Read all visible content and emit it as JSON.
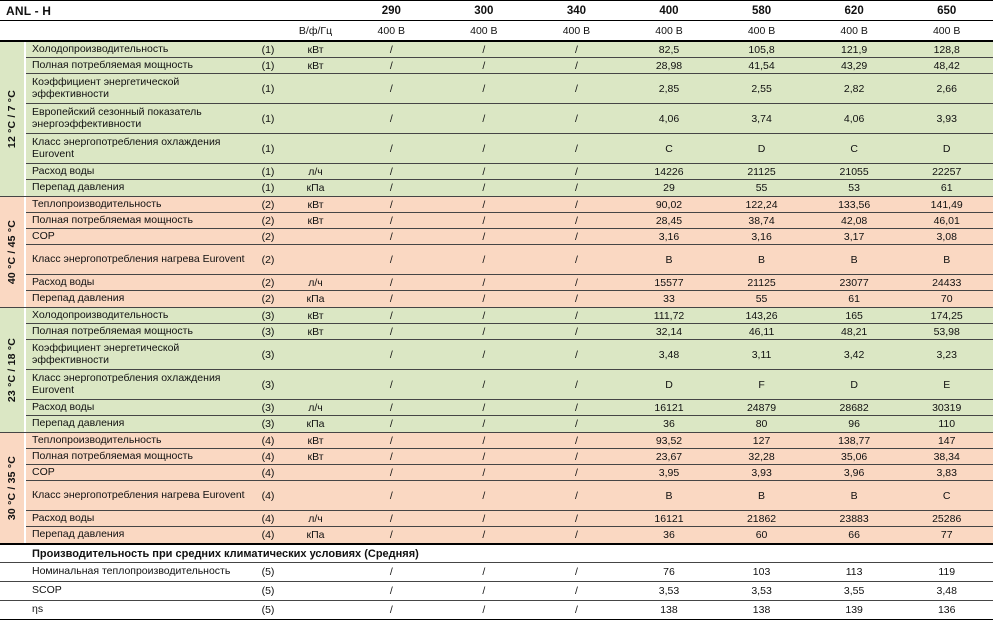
{
  "title": "ANL - H",
  "header": {
    "electrical_label": "В/ф/Гц",
    "models": [
      "290",
      "300",
      "340",
      "400",
      "580",
      "620",
      "650"
    ],
    "power_supply": [
      "400 В",
      "400 В",
      "400 В",
      "400 В",
      "400 В",
      "400 В",
      "400 В"
    ]
  },
  "colors": {
    "cooling_bg": "#dbe7c4",
    "heating_bg": "#fad8c2"
  },
  "sections": [
    {
      "temp_label": "12 °C / 7 °C",
      "type": "cooling",
      "rows": [
        {
          "name": "Холодопроизводительность",
          "note": "(1)",
          "unit": "кВт",
          "values": [
            "/",
            "/",
            "/",
            "82,5",
            "105,8",
            "121,9",
            "128,8"
          ]
        },
        {
          "name": "Полная потребляемая мощность",
          "note": "(1)",
          "unit": "кВт",
          "values": [
            "/",
            "/",
            "/",
            "28,98",
            "41,54",
            "43,29",
            "48,42"
          ]
        },
        {
          "name": "Коэффициент энергетической эффективности",
          "note": "(1)",
          "unit": "",
          "values": [
            "/",
            "/",
            "/",
            "2,85",
            "2,55",
            "2,82",
            "2,66"
          ],
          "twoline": true
        },
        {
          "name": "Европейский сезонный показатель энергоэффективности",
          "note": "(1)",
          "unit": "",
          "values": [
            "/",
            "/",
            "/",
            "4,06",
            "3,74",
            "4,06",
            "3,93"
          ],
          "twoline": true
        },
        {
          "name": "Класс энергопотребления охлаждения Eurovent",
          "note": "(1)",
          "unit": "",
          "values": [
            "/",
            "/",
            "/",
            "C",
            "D",
            "C",
            "D"
          ],
          "twoline": true
        },
        {
          "name": "Расход воды",
          "note": "(1)",
          "unit": "л/ч",
          "values": [
            "/",
            "/",
            "/",
            "14226",
            "21125",
            "21055",
            "22257"
          ]
        },
        {
          "name": "Перепад давления",
          "note": "(1)",
          "unit": "кПа",
          "values": [
            "/",
            "/",
            "/",
            "29",
            "55",
            "53",
            "61"
          ]
        }
      ]
    },
    {
      "temp_label": "40 °C / 45 °C",
      "type": "heating",
      "rows": [
        {
          "name": "Теплопроизводительность",
          "note": "(2)",
          "unit": "кВт",
          "values": [
            "/",
            "/",
            "/",
            "90,02",
            "122,24",
            "133,56",
            "141,49"
          ]
        },
        {
          "name": "Полная потребляемая мощность",
          "note": "(2)",
          "unit": "кВт",
          "values": [
            "/",
            "/",
            "/",
            "28,45",
            "38,74",
            "42,08",
            "46,01"
          ]
        },
        {
          "name": "COP",
          "note": "(2)",
          "unit": "",
          "values": [
            "/",
            "/",
            "/",
            "3,16",
            "3,16",
            "3,17",
            "3,08"
          ]
        },
        {
          "name": "Класс энергопотребления нагрева Eurovent",
          "note": "(2)",
          "unit": "",
          "values": [
            "/",
            "/",
            "/",
            "B",
            "B",
            "B",
            "B"
          ],
          "twoline": true
        },
        {
          "name": "Расход воды",
          "note": "(2)",
          "unit": "л/ч",
          "values": [
            "/",
            "/",
            "/",
            "15577",
            "21125",
            "23077",
            "24433"
          ]
        },
        {
          "name": "Перепад давления",
          "note": "(2)",
          "unit": "кПа",
          "values": [
            "/",
            "/",
            "/",
            "33",
            "55",
            "61",
            "70"
          ]
        }
      ]
    },
    {
      "temp_label": "23 °C / 18 °C",
      "type": "cooling",
      "rows": [
        {
          "name": "Холодопроизводительность",
          "note": "(3)",
          "unit": "кВт",
          "values": [
            "/",
            "/",
            "/",
            "111,72",
            "143,26",
            "165",
            "174,25"
          ]
        },
        {
          "name": "Полная потребляемая мощность",
          "note": "(3)",
          "unit": "кВт",
          "values": [
            "/",
            "/",
            "/",
            "32,14",
            "46,11",
            "48,21",
            "53,98"
          ]
        },
        {
          "name": "Коэффициент энергетической эффективности",
          "note": "(3)",
          "unit": "",
          "values": [
            "/",
            "/",
            "/",
            "3,48",
            "3,11",
            "3,42",
            "3,23"
          ],
          "twoline": true
        },
        {
          "name": "Класс энергопотребления охлаждения Eurovent",
          "note": "(3)",
          "unit": "",
          "values": [
            "/",
            "/",
            "/",
            "D",
            "F",
            "D",
            "E"
          ],
          "twoline": true
        },
        {
          "name": "Расход воды",
          "note": "(3)",
          "unit": "л/ч",
          "values": [
            "/",
            "/",
            "/",
            "16121",
            "24879",
            "28682",
            "30319"
          ]
        },
        {
          "name": "Перепад давления",
          "note": "(3)",
          "unit": "кПа",
          "values": [
            "/",
            "/",
            "/",
            "36",
            "80",
            "96",
            "110"
          ]
        }
      ]
    },
    {
      "temp_label": "30 °C / 35 °C",
      "type": "heating",
      "rows": [
        {
          "name": "Теплопроизводительность",
          "note": "(4)",
          "unit": "кВт",
          "values": [
            "/",
            "/",
            "/",
            "93,52",
            "127",
            "138,77",
            "147"
          ]
        },
        {
          "name": "Полная потребляемая мощность",
          "note": "(4)",
          "unit": "кВт",
          "values": [
            "/",
            "/",
            "/",
            "23,67",
            "32,28",
            "35,06",
            "38,34"
          ]
        },
        {
          "name": "COP",
          "note": "(4)",
          "unit": "",
          "values": [
            "/",
            "/",
            "/",
            "3,95",
            "3,93",
            "3,96",
            "3,83"
          ]
        },
        {
          "name": "Класс энергопотребления нагрева Eurovent",
          "note": "(4)",
          "unit": "",
          "values": [
            "/",
            "/",
            "/",
            "B",
            "B",
            "B",
            "C"
          ],
          "twoline": true
        },
        {
          "name": "Расход воды",
          "note": "(4)",
          "unit": "л/ч",
          "values": [
            "/",
            "/",
            "/",
            "16121",
            "21862",
            "23883",
            "25286"
          ]
        },
        {
          "name": "Перепад давления",
          "note": "(4)",
          "unit": "кПа",
          "values": [
            "/",
            "/",
            "/",
            "36",
            "60",
            "66",
            "77"
          ]
        }
      ]
    }
  ],
  "footer": {
    "header": "Производительность при средних климатических условиях (Средняя)",
    "rows": [
      {
        "name": "Номинальная теплопроизводительность",
        "note": "(5)",
        "unit": "",
        "values": [
          "/",
          "/",
          "/",
          "76",
          "103",
          "113",
          "119"
        ]
      },
      {
        "name": "SCOP",
        "note": "(5)",
        "unit": "",
        "values": [
          "/",
          "/",
          "/",
          "3,53",
          "3,53",
          "3,55",
          "3,48"
        ]
      },
      {
        "name": "ηs",
        "note": "(5)",
        "unit": "",
        "values": [
          "/",
          "/",
          "/",
          "138",
          "138",
          "139",
          "136"
        ]
      }
    ]
  }
}
